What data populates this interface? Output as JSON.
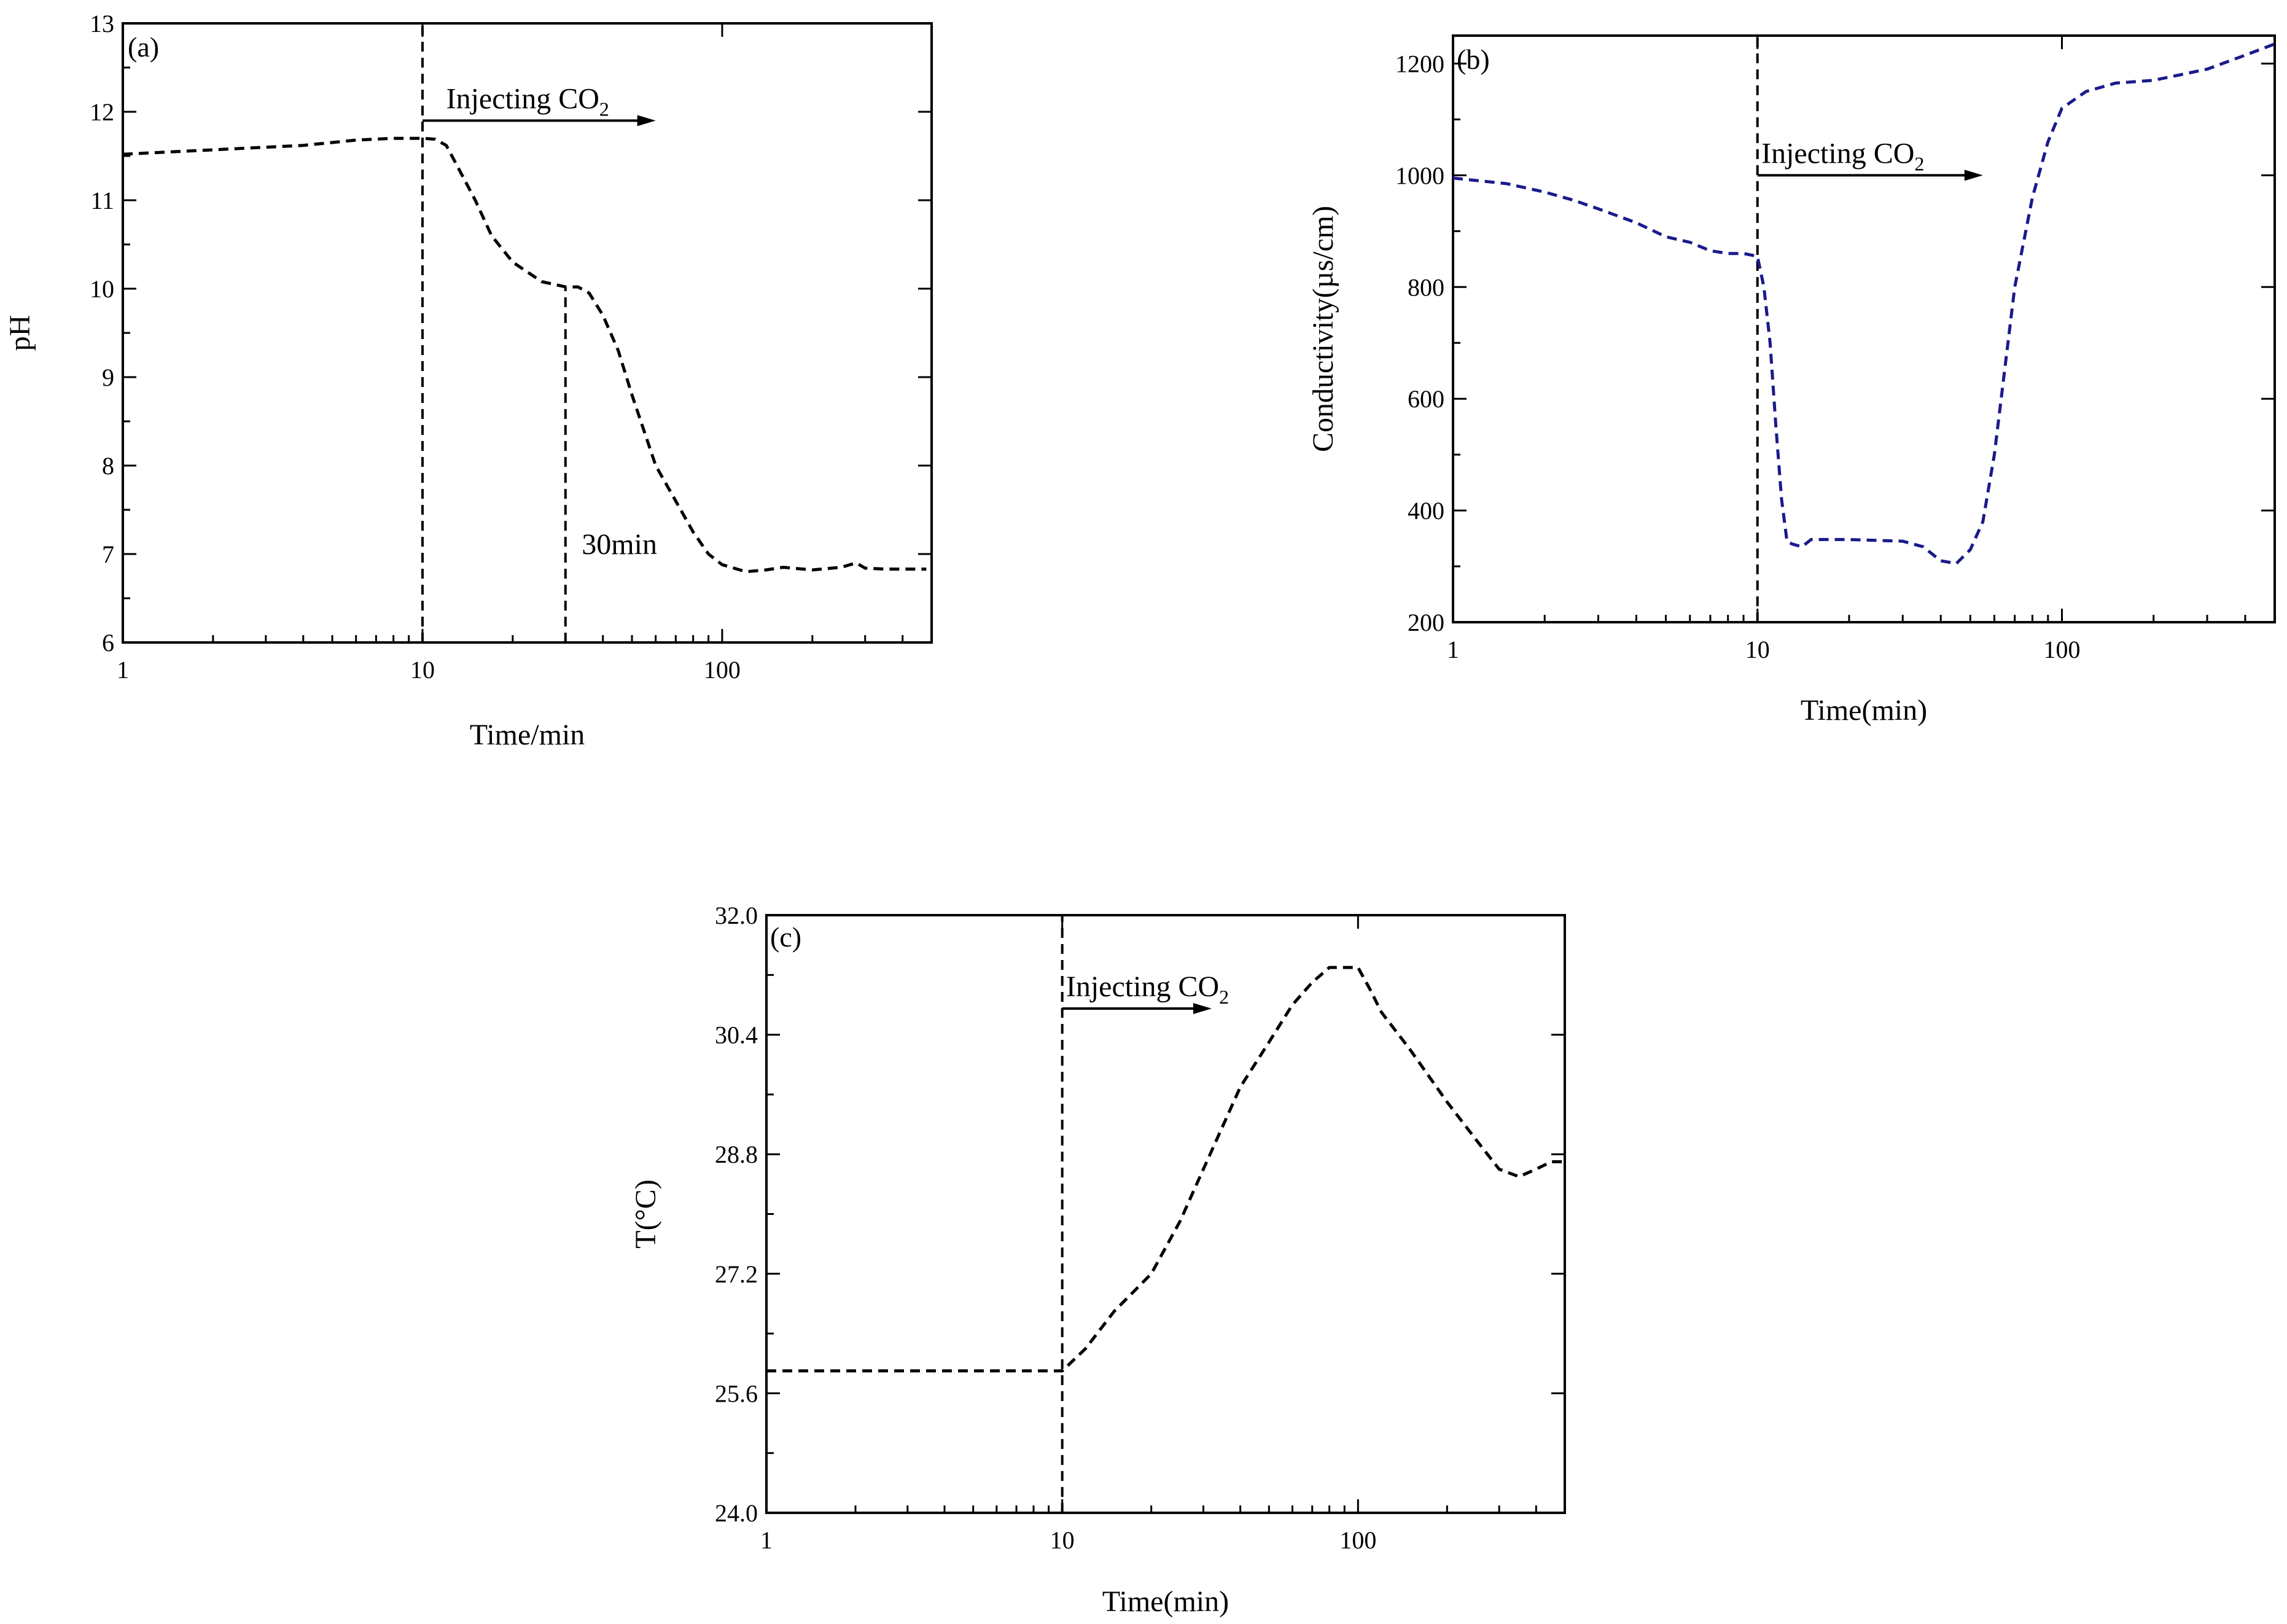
{
  "chart_data": [
    {
      "type": "line",
      "panel_label": "(a)",
      "title": "",
      "xlabel": "Time/min",
      "ylabel": "pH",
      "xscale": "log",
      "xlim": [
        1,
        500
      ],
      "ylim": [
        6,
        13
      ],
      "x_ticks": [
        1,
        10,
        100
      ],
      "x_tick_labels": [
        "1",
        "10",
        "100"
      ],
      "y_ticks": [
        6,
        7,
        8,
        9,
        10,
        11,
        12,
        13
      ],
      "y_tick_labels": [
        "6",
        "7",
        "8",
        "9",
        "10",
        "11",
        "12",
        "13"
      ],
      "grid": false,
      "series": [
        {
          "name": "pH",
          "color": "#000000",
          "x": [
            1,
            2,
            4,
            6,
            8,
            10,
            11,
            12,
            13,
            15,
            17,
            20,
            25,
            30,
            33,
            36,
            40,
            45,
            50,
            60,
            70,
            80,
            90,
            100,
            120,
            140,
            160,
            200,
            250,
            280,
            300,
            350,
            480
          ],
          "y": [
            11.52,
            11.57,
            11.62,
            11.68,
            11.7,
            11.7,
            11.69,
            11.62,
            11.4,
            11.0,
            10.6,
            10.3,
            10.08,
            10.02,
            10.02,
            9.95,
            9.7,
            9.3,
            8.8,
            8.0,
            7.6,
            7.25,
            7.0,
            6.88,
            6.8,
            6.82,
            6.85,
            6.82,
            6.85,
            6.9,
            6.84,
            6.83,
            6.83
          ]
        }
      ],
      "vlines": [
        {
          "x": 10,
          "ymin": 6,
          "ymax": 13
        },
        {
          "x": 30,
          "ymin": 6,
          "ymax": 10.02
        }
      ],
      "annotations": [
        {
          "text": "Injecting CO",
          "subscript": "2",
          "x": 12,
          "y": 12.5,
          "arrow_x_start": 10,
          "arrow_x_end": 60,
          "arrow_y": 11.9
        },
        {
          "text": "30min",
          "x": 34,
          "y": 7.0
        }
      ]
    },
    {
      "type": "line",
      "panel_label": "(b)",
      "title": "",
      "xlabel": "Time(min)",
      "ylabel": "Conductivity(µs/cm)",
      "xscale": "log",
      "xlim": [
        1,
        500
      ],
      "ylim": [
        200,
        1250
      ],
      "x_ticks": [
        1,
        10,
        100
      ],
      "x_tick_labels": [
        "1",
        "10",
        "100"
      ],
      "y_ticks": [
        200,
        400,
        600,
        800,
        1000,
        1200
      ],
      "y_tick_labels": [
        "200",
        "400",
        "600",
        "800",
        "1000",
        "1200"
      ],
      "grid": false,
      "series": [
        {
          "name": "Conductivity",
          "color": "#1a1a8c",
          "x": [
            1,
            1.5,
            2,
            2.5,
            3,
            4,
            5,
            6,
            7,
            8,
            9,
            10,
            10.5,
            11,
            11.5,
            12,
            12.5,
            13,
            14,
            15,
            20,
            30,
            35,
            40,
            45,
            50,
            55,
            60,
            70,
            80,
            90,
            100,
            120,
            150,
            200,
            300,
            400,
            500
          ],
          "y": [
            995,
            985,
            970,
            955,
            940,
            915,
            890,
            880,
            865,
            860,
            860,
            855,
            800,
            700,
            550,
            420,
            345,
            340,
            335,
            348,
            348,
            345,
            335,
            310,
            305,
            330,
            380,
            500,
            800,
            960,
            1060,
            1120,
            1150,
            1165,
            1170,
            1190,
            1215,
            1235
          ]
        }
      ],
      "vlines": [
        {
          "x": 10,
          "ymin": 200,
          "ymax": 1250
        }
      ],
      "annotations": [
        {
          "text": "Injecting CO",
          "subscript": "2",
          "x": 10.3,
          "y": 1000,
          "arrow_x_start": 10,
          "arrow_x_end": 55,
          "arrow_y": 1000
        }
      ]
    },
    {
      "type": "line",
      "panel_label": "(c)",
      "title": "",
      "xlabel": "Time(min)",
      "ylabel": "T(°C)",
      "xscale": "log",
      "xlim": [
        1,
        500
      ],
      "ylim": [
        24.0,
        32.0
      ],
      "x_ticks": [
        1,
        10,
        100
      ],
      "x_tick_labels": [
        "1",
        "10",
        "100"
      ],
      "y_ticks": [
        24.0,
        25.6,
        27.2,
        28.8,
        30.4,
        32.0
      ],
      "y_tick_labels": [
        "24.0",
        "25.6",
        "27.2",
        "28.8",
        "30.4",
        "32.0"
      ],
      "grid": false,
      "series": [
        {
          "name": "Temperature",
          "color": "#000000",
          "x": [
            1,
            2,
            5,
            10,
            12,
            15,
            20,
            25,
            30,
            40,
            50,
            60,
            70,
            80,
            100,
            110,
            120,
            150,
            200,
            250,
            300,
            350,
            400,
            450,
            500
          ],
          "y": [
            25.9,
            25.9,
            25.9,
            25.9,
            26.2,
            26.7,
            27.2,
            27.9,
            28.6,
            29.7,
            30.3,
            30.8,
            31.1,
            31.3,
            31.3,
            31.0,
            30.7,
            30.2,
            29.5,
            29.0,
            28.6,
            28.5,
            28.6,
            28.7,
            28.7
          ]
        }
      ],
      "vlines": [
        {
          "x": 10,
          "ymin": 24.0,
          "ymax": 32.0
        }
      ],
      "annotations": [
        {
          "text": "Injecting CO",
          "subscript": "2",
          "x": 10.3,
          "y": 31.2,
          "arrow_x_start": 10,
          "arrow_x_end": 32,
          "arrow_y": 30.75
        }
      ]
    }
  ]
}
